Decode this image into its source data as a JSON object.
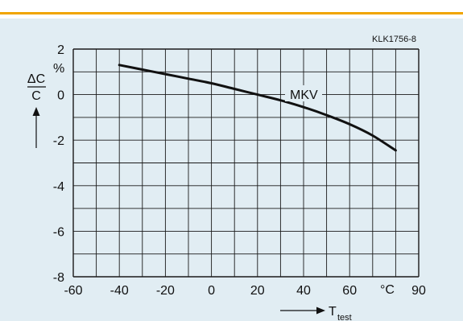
{
  "figure_code": "KLK1756-8",
  "chart_data": {
    "type": "line",
    "series": [
      {
        "name": "MKV",
        "x": [
          -40,
          -30,
          -20,
          -10,
          0,
          10,
          20,
          30,
          40,
          50,
          60,
          70,
          80
        ],
        "y": [
          1.3,
          1.1,
          0.9,
          0.7,
          0.5,
          0.25,
          0.0,
          -0.25,
          -0.55,
          -0.9,
          -1.3,
          -1.8,
          -2.45
        ]
      }
    ],
    "xlim": [
      -60,
      90
    ],
    "ylim": [
      -8,
      2
    ],
    "x_ticks": [
      -60,
      -40,
      -20,
      0,
      20,
      40,
      60,
      90
    ],
    "y_ticks": [
      2,
      0,
      -2,
      -4,
      -6,
      -8
    ],
    "x_grid_step": 10,
    "y_grid_step": 1,
    "grid": true,
    "ylabel": {
      "top": "ΔC",
      "bottom": "C"
    },
    "y_unit": "%",
    "x_unit": "°C",
    "xlabel": {
      "main": "T",
      "sub": "test"
    },
    "colors": {
      "line": "#111111",
      "grid": "#1a1a1a",
      "background": "#e1edf3",
      "accent": "#f0a500"
    }
  }
}
